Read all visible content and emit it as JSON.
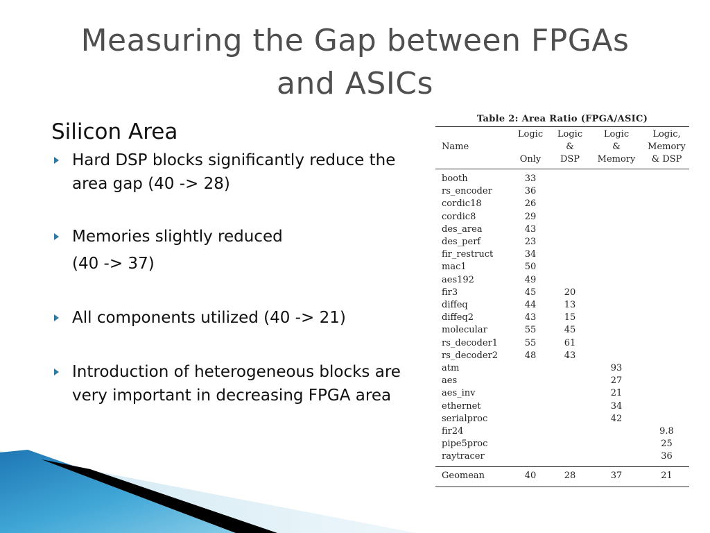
{
  "slide": {
    "title_line1": "Measuring the Gap between FPGAs",
    "title_line2": "and ASICs",
    "subhead": "Silicon Area",
    "bullets": [
      {
        "text": "Hard DSP blocks significantly reduce the area gap (40 -> 28)"
      },
      {
        "text": "Memories slightly reduced",
        "continuation": "(40 -> 37)"
      },
      {
        "text": "All components utilized (40 -> 21)"
      },
      {
        "text": "Introduction of heterogeneous blocks are very important in decreasing FPGA area"
      }
    ],
    "colors": {
      "title": "#4f4f4f",
      "bullet_arrow": "#2a7aa6",
      "decor_blue": "#2a8fc0",
      "decor_black": "#000000"
    }
  },
  "table": {
    "caption": "Table 2: Area Ratio (FPGA/ASIC)",
    "headers": {
      "name": "Name",
      "col1": [
        "Logic",
        "",
        "Only"
      ],
      "col2": [
        "Logic",
        "&",
        "DSP"
      ],
      "col3": [
        "Logic",
        "&",
        "Memory"
      ],
      "col4": [
        "Logic,",
        "Memory",
        "& DSP"
      ]
    },
    "rows": [
      [
        "booth",
        "33",
        "",
        "",
        ""
      ],
      [
        "rs_encoder",
        "36",
        "",
        "",
        ""
      ],
      [
        "cordic18",
        "26",
        "",
        "",
        ""
      ],
      [
        "cordic8",
        "29",
        "",
        "",
        ""
      ],
      [
        "des_area",
        "43",
        "",
        "",
        ""
      ],
      [
        "des_perf",
        "23",
        "",
        "",
        ""
      ],
      [
        "fir_restruct",
        "34",
        "",
        "",
        ""
      ],
      [
        "mac1",
        "50",
        "",
        "",
        ""
      ],
      [
        "aes192",
        "49",
        "",
        "",
        ""
      ],
      [
        "fir3",
        "45",
        "20",
        "",
        ""
      ],
      [
        "diffeq",
        "44",
        "13",
        "",
        ""
      ],
      [
        "diffeq2",
        "43",
        "15",
        "",
        ""
      ],
      [
        "molecular",
        "55",
        "45",
        "",
        ""
      ],
      [
        "rs_decoder1",
        "55",
        "61",
        "",
        ""
      ],
      [
        "rs_decoder2",
        "48",
        "43",
        "",
        ""
      ],
      [
        "atm",
        "",
        "",
        "93",
        ""
      ],
      [
        "aes",
        "",
        "",
        "27",
        ""
      ],
      [
        "aes_inv",
        "",
        "",
        "21",
        ""
      ],
      [
        "ethernet",
        "",
        "",
        "34",
        ""
      ],
      [
        "serialproc",
        "",
        "",
        "42",
        ""
      ],
      [
        "fir24",
        "",
        "",
        "",
        "9.8"
      ],
      [
        "pipe5proc",
        "",
        "",
        "",
        "25"
      ],
      [
        "raytracer",
        "",
        "",
        "",
        "36"
      ]
    ],
    "footer": [
      "Geomean",
      "40",
      "28",
      "37",
      "21"
    ]
  }
}
